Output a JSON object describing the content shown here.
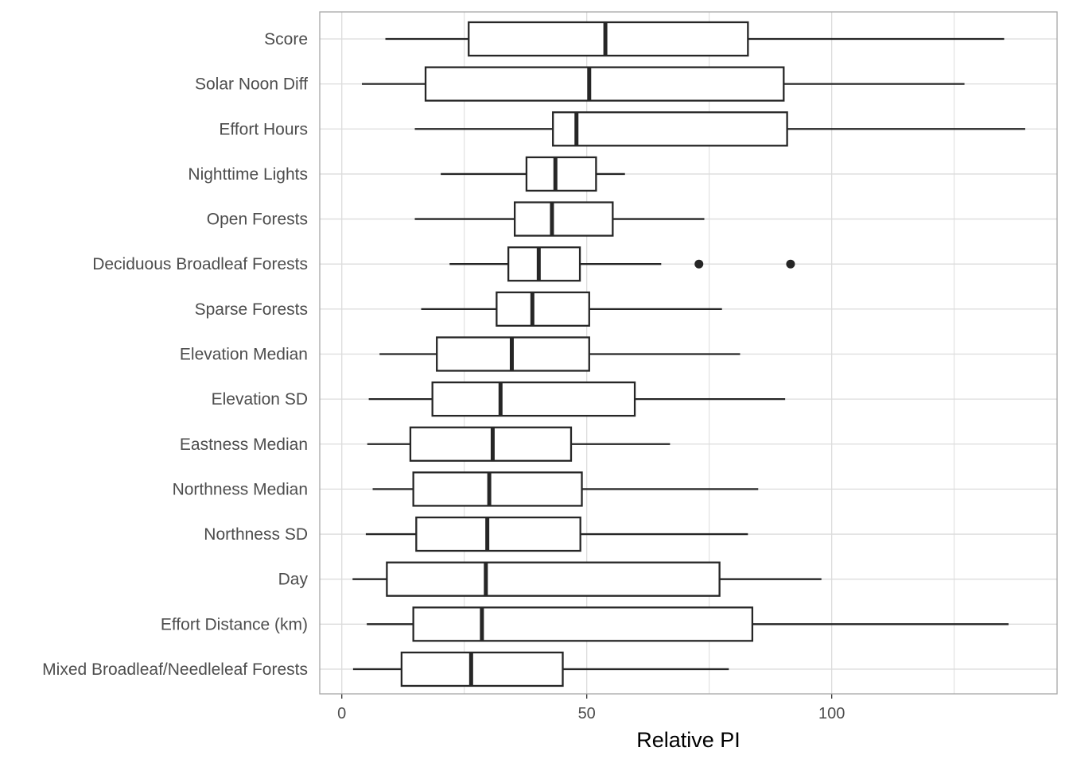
{
  "chart_data": {
    "type": "boxplot",
    "orientation": "horizontal",
    "title": "",
    "xlabel": "Relative PI",
    "ylabel": "",
    "xlim": [
      -4.5,
      146
    ],
    "xticks": [
      0,
      50,
      100
    ],
    "grid": true,
    "categories": [
      "Score",
      "Solar Noon Diff",
      "Effort Hours",
      "Nighttime Lights",
      "Open Forests",
      "Deciduous Broadleaf Forests",
      "Sparse Forests",
      "Elevation Median",
      "Elevation SD",
      "Eastness Median",
      "Northness Median",
      "Northness SD",
      "Day",
      "Effort Distance (km)",
      "Mixed Broadleaf/Needleleaf Forests"
    ],
    "boxes": [
      {
        "category": "Score",
        "whisker_low": 8.9,
        "q1": 25.9,
        "median": 53.8,
        "q3": 82.9,
        "whisker_high": 135.2,
        "outliers": []
      },
      {
        "category": "Solar Noon Diff",
        "whisker_low": 4.1,
        "q1": 17.1,
        "median": 50.5,
        "q3": 90.2,
        "whisker_high": 127.1,
        "outliers": []
      },
      {
        "category": "Effort Hours",
        "whisker_low": 14.9,
        "q1": 43.1,
        "median": 47.9,
        "q3": 90.9,
        "whisker_high": 139.5,
        "outliers": []
      },
      {
        "category": "Nighttime Lights",
        "whisker_low": 20.2,
        "q1": 37.7,
        "median": 43.6,
        "q3": 51.9,
        "whisker_high": 57.8,
        "outliers": []
      },
      {
        "category": "Open Forests",
        "whisker_low": 14.9,
        "q1": 35.3,
        "median": 42.9,
        "q3": 55.3,
        "whisker_high": 74.0,
        "outliers": []
      },
      {
        "category": "Deciduous Broadleaf Forests",
        "whisker_low": 22.0,
        "q1": 34.0,
        "median": 40.2,
        "q3": 48.6,
        "whisker_high": 65.2,
        "outliers": [
          72.9,
          91.6
        ]
      },
      {
        "category": "Sparse Forests",
        "whisker_low": 16.2,
        "q1": 31.6,
        "median": 38.9,
        "q3": 50.5,
        "whisker_high": 77.6,
        "outliers": []
      },
      {
        "category": "Elevation Median",
        "whisker_low": 7.7,
        "q1": 19.4,
        "median": 34.7,
        "q3": 50.5,
        "whisker_high": 81.3,
        "outliers": []
      },
      {
        "category": "Elevation SD",
        "whisker_low": 5.5,
        "q1": 18.5,
        "median": 32.4,
        "q3": 59.8,
        "whisker_high": 90.5,
        "outliers": []
      },
      {
        "category": "Eastness Median",
        "whisker_low": 5.2,
        "q1": 14.0,
        "median": 30.8,
        "q3": 46.8,
        "whisker_high": 67.0,
        "outliers": []
      },
      {
        "category": "Northness Median",
        "whisker_low": 6.3,
        "q1": 14.6,
        "median": 30.1,
        "q3": 49.0,
        "whisker_high": 85.0,
        "outliers": []
      },
      {
        "category": "Northness SD",
        "whisker_low": 4.9,
        "q1": 15.2,
        "median": 29.7,
        "q3": 48.7,
        "whisker_high": 82.9,
        "outliers": []
      },
      {
        "category": "Day",
        "whisker_low": 2.2,
        "q1": 9.2,
        "median": 29.4,
        "q3": 77.1,
        "whisker_high": 97.9,
        "outliers": []
      },
      {
        "category": "Effort Distance (km)",
        "whisker_low": 5.1,
        "q1": 14.6,
        "median": 28.6,
        "q3": 83.8,
        "whisker_high": 136.1,
        "outliers": []
      },
      {
        "category": "Mixed Broadleaf/Needleleaf Forests",
        "whisker_low": 2.3,
        "q1": 12.2,
        "median": 26.4,
        "q3": 45.1,
        "whisker_high": 79.0,
        "outliers": []
      }
    ]
  },
  "colors": {
    "box_line": "#262626",
    "box_fill": "#ffffff",
    "grid": "#dcdcdc",
    "panel_border": "#a6a6a6",
    "text": "#4d4d4d"
  }
}
